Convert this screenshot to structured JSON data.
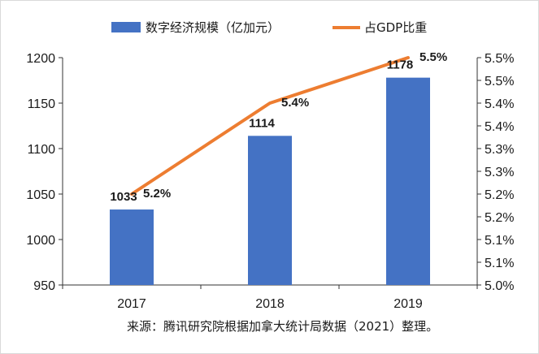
{
  "chart_data": {
    "type": "bar+line",
    "categories": [
      "2017",
      "2018",
      "2019"
    ],
    "series": [
      {
        "name": "数字经济规模（亿加元）",
        "type": "bar",
        "axis": "left",
        "color": "#4472C4",
        "values": [
          1033,
          1114,
          1178
        ],
        "labels": [
          "1033",
          "1114",
          "1178"
        ]
      },
      {
        "name": "占GDP比重",
        "type": "line",
        "axis": "right",
        "color": "#ED7D31",
        "values": [
          5.2,
          5.4,
          5.5
        ],
        "labels": [
          "5.2%",
          "5.4%",
          "5.5%"
        ]
      }
    ],
    "y_left": {
      "ylim": [
        950,
        1200
      ],
      "ticks": [
        "950",
        "1000",
        "1050",
        "1100",
        "1150",
        "1200"
      ]
    },
    "y_right": {
      "ylim": [
        5.0,
        5.5
      ],
      "ticks": [
        "5.0%",
        "5.1%",
        "5.1%",
        "5.2%",
        "5.2%",
        "5.3%",
        "5.3%",
        "5.4%",
        "5.4%",
        "5.5%",
        "5.5%"
      ]
    },
    "legend_position": "top",
    "grid": false
  },
  "source_note": "来源：腾讯研究院根据加拿大统计局数据（2021）整理。"
}
